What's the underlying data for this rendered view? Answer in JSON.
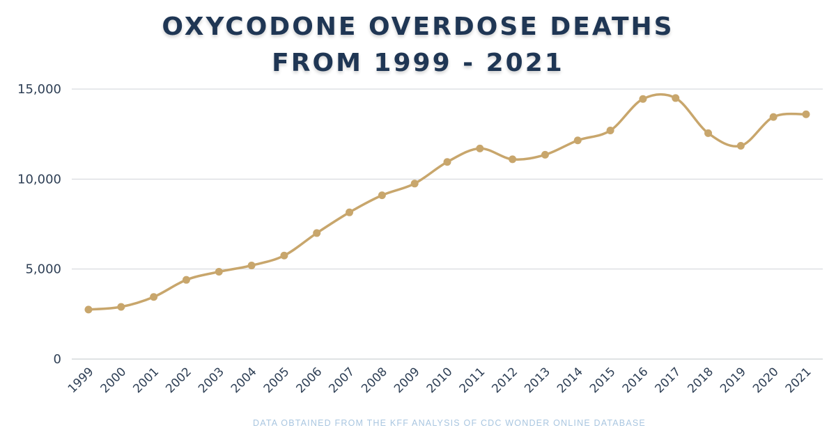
{
  "chart_data": {
    "type": "line",
    "title_line1": "OXYCODONE OVERDOSE DEATHS",
    "title_line2": "FROM 1999 - 2021",
    "source_note": "DATA OBTAINED FROM THE KFF ANALYSIS OF CDC WONDER ONLINE DATABASE",
    "x": [
      "1999",
      "2000",
      "2001",
      "2002",
      "2003",
      "2004",
      "2005",
      "2006",
      "2007",
      "2008",
      "2009",
      "2010",
      "2011",
      "2012",
      "2013",
      "2014",
      "2015",
      "2016",
      "2017",
      "2018",
      "2019",
      "2020",
      "2021"
    ],
    "values": [
      2750,
      2900,
      3450,
      4400,
      4850,
      5200,
      5750,
      7000,
      8150,
      9100,
      9750,
      10950,
      11700,
      11100,
      11350,
      12150,
      12700,
      14450,
      14500,
      12550,
      11850,
      13450,
      13600
    ],
    "ylim": [
      0,
      15000
    ],
    "yticks": [
      0,
      5000,
      10000,
      15000
    ],
    "ytick_labels": [
      "0",
      "5,000",
      "10,000",
      "15,000"
    ],
    "grid": true,
    "line_color": "#c8a66c",
    "title_color": "#1f3654",
    "source_color": "#a9c6e0"
  }
}
